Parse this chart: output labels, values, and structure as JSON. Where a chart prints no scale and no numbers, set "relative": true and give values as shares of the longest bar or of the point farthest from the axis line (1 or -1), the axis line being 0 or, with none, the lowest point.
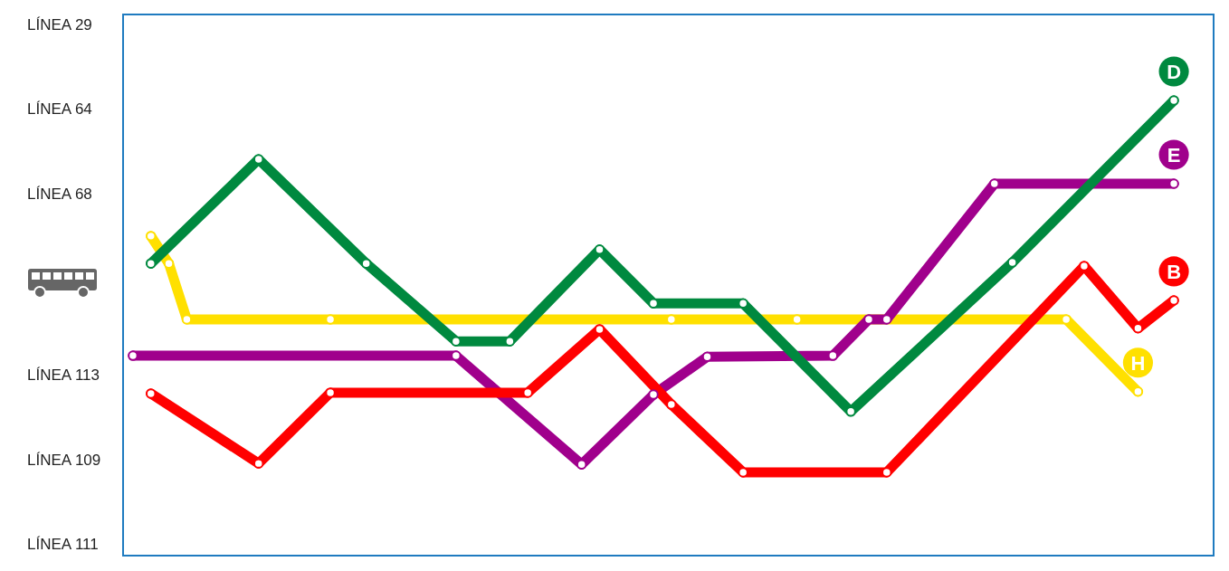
{
  "chart_data": {
    "type": "line",
    "relative": true,
    "marker": "circle",
    "line_style": "solid",
    "legend": false,
    "categories": [
      null,
      null,
      null,
      null,
      null,
      null,
      null,
      null,
      null,
      null,
      null,
      null,
      null,
      null,
      null,
      null,
      null,
      null,
      null,
      null,
      null,
      null,
      null,
      null,
      null,
      null,
      null,
      null,
      null,
      null,
      null,
      null,
      null,
      null,
      null,
      null,
      null,
      null,
      null,
      null,
      null,
      null,
      null,
      null,
      null,
      null,
      null,
      null,
      null,
      null,
      null,
      null,
      null,
      null,
      null,
      null,
      null,
      null,
      null
    ],
    "annotations": [
      "LÍNEA 29",
      "LÍNEA 64",
      "LÍNEA 68",
      "LÍNEA 113",
      "LÍNEA 109",
      "LÍNEA 111"
    ],
    "series": [
      {
        "name": "H",
        "color": "#ffe000",
        "values": [
          null,
          0.728,
          0.673,
          0.561,
          null,
          null,
          null,
          null,
          null,
          null,
          null,
          0.561,
          null,
          null,
          null,
          null,
          null,
          null,
          null,
          null,
          null,
          null,
          null,
          null,
          null,
          null,
          null,
          null,
          null,
          null,
          0.561,
          null,
          null,
          null,
          null,
          null,
          null,
          0.561,
          null,
          null,
          null,
          null,
          null,
          null,
          null,
          null,
          null,
          null,
          null,
          null,
          null,
          null,
          0.561,
          null,
          null,
          null,
          0.416,
          null,
          null
        ]
      },
      {
        "name": "E",
        "color": "#a0008c",
        "values": [
          0.488,
          null,
          null,
          null,
          null,
          null,
          null,
          null,
          null,
          null,
          null,
          null,
          null,
          null,
          null,
          null,
          null,
          null,
          0.488,
          null,
          null,
          null,
          null,
          null,
          null,
          0.27,
          null,
          null,
          null,
          0.41,
          null,
          null,
          0.486,
          null,
          null,
          null,
          null,
          null,
          null,
          0.488,
          null,
          0.561,
          0.561,
          null,
          null,
          null,
          null,
          null,
          0.833,
          null,
          null,
          null,
          null,
          null,
          null,
          null,
          null,
          null,
          0.833
        ]
      },
      {
        "name": "B",
        "color": "#ff0000",
        "values": [
          null,
          0.412,
          null,
          null,
          null,
          null,
          null,
          0.272,
          null,
          null,
          null,
          0.414,
          null,
          null,
          null,
          null,
          null,
          null,
          null,
          null,
          null,
          null,
          0.414,
          null,
          null,
          null,
          0.541,
          null,
          null,
          null,
          0.39,
          null,
          null,
          null,
          0.254,
          null,
          null,
          null,
          null,
          null,
          null,
          null,
          0.254,
          null,
          null,
          null,
          null,
          null,
          null,
          null,
          null,
          null,
          null,
          0.668,
          null,
          null,
          0.543,
          null,
          0.599
        ]
      },
      {
        "name": "D",
        "color": "#00893f",
        "values": [
          null,
          0.673,
          null,
          null,
          null,
          null,
          null,
          0.882,
          null,
          null,
          null,
          null,
          null,
          0.673,
          null,
          null,
          null,
          null,
          0.517,
          null,
          null,
          0.517,
          null,
          null,
          null,
          null,
          0.701,
          null,
          null,
          0.593,
          null,
          null,
          null,
          null,
          0.593,
          null,
          null,
          null,
          null,
          null,
          0.376,
          null,
          null,
          null,
          null,
          null,
          null,
          null,
          null,
          0.675,
          null,
          null,
          null,
          null,
          null,
          null,
          null,
          null,
          1
        ]
      }
    ]
  }
}
